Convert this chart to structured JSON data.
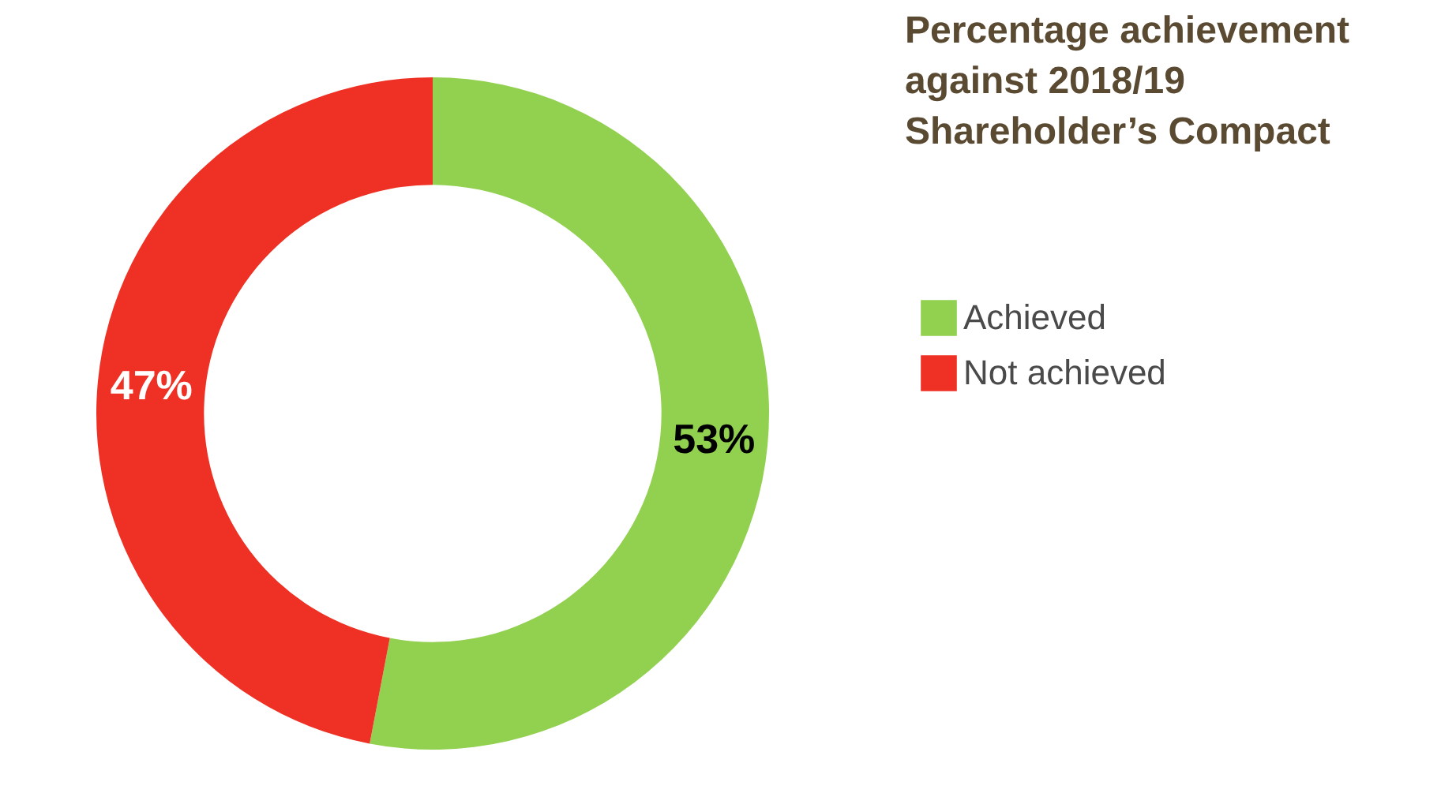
{
  "chart_data": {
    "type": "donut",
    "title": "Percentage achievement against 2018/19 Shareholder’s Compact",
    "categories": [
      "Achieved",
      "Not achieved"
    ],
    "values": [
      53,
      47
    ],
    "colors": [
      "#92d050",
      "#ee3124"
    ],
    "value_labels": [
      "53%",
      "47%"
    ],
    "legend": "right"
  }
}
